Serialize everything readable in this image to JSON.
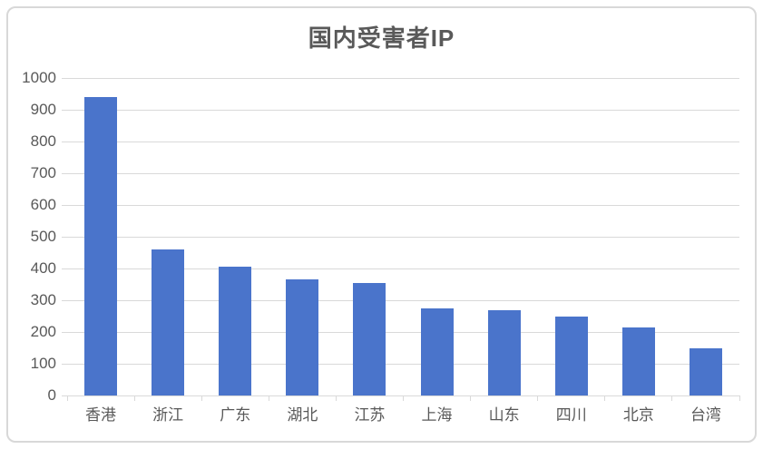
{
  "chart_data": {
    "type": "bar",
    "title": "国内受害者IP",
    "categories": [
      "香港",
      "浙江",
      "广东",
      "湖北",
      "江苏",
      "上海",
      "山东",
      "四川",
      "北京",
      "台湾"
    ],
    "values": [
      940,
      460,
      405,
      367,
      353,
      273,
      268,
      250,
      215,
      150
    ],
    "xlabel": "",
    "ylabel": "",
    "ylim": [
      0,
      1000
    ],
    "ytick_step": 100,
    "ytick_labels": [
      "0",
      "100",
      "200",
      "300",
      "400",
      "500",
      "600",
      "700",
      "800",
      "900",
      "1000"
    ],
    "grid": "horizontal-only",
    "legend": "none",
    "bar_color": "#4a74cb",
    "title_color": "#595959",
    "axis_text_color": "#595959",
    "gridline_color": "#d9d9d9",
    "frame_border_color": "#d8d8d8",
    "background_color": "#ffffff"
  }
}
